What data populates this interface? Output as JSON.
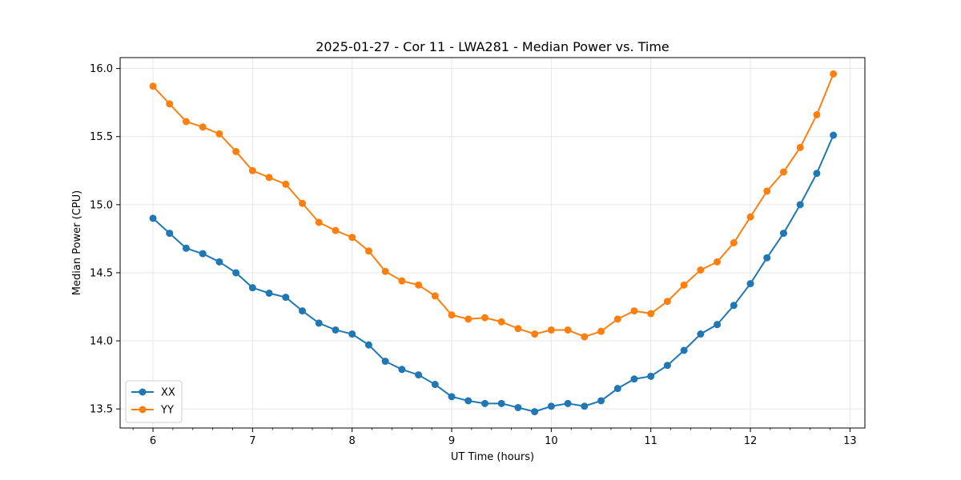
{
  "chart_data": {
    "type": "line",
    "title": "2025-01-27 - Cor 11 - LWA281 - Median Power vs. Time",
    "xlabel": "UT Time (hours)",
    "ylabel": "Median Power (CPU)",
    "xlim": [
      5.67,
      13.15
    ],
    "ylim": [
      13.36,
      16.08
    ],
    "xticks": [
      6,
      7,
      8,
      9,
      10,
      11,
      12,
      13
    ],
    "xtick_labels": [
      "6",
      "7",
      "8",
      "9",
      "10",
      "11",
      "12",
      "13"
    ],
    "yticks": [
      13.5,
      14.0,
      14.5,
      15.0,
      15.5,
      16.0
    ],
    "ytick_labels": [
      "13.5",
      "14.0",
      "14.5",
      "15.0",
      "15.5",
      "16.0"
    ],
    "grid": true,
    "legend_position": "lower-left",
    "x": [
      6.0,
      6.1667,
      6.3333,
      6.5,
      6.6667,
      6.8333,
      7.0,
      7.1667,
      7.3333,
      7.5,
      7.6667,
      7.8333,
      8.0,
      8.1667,
      8.3333,
      8.5,
      8.6667,
      8.8333,
      9.0,
      9.1667,
      9.3333,
      9.5,
      9.6667,
      9.8333,
      10.0,
      10.1667,
      10.3333,
      10.5,
      10.6667,
      10.8333,
      11.0,
      11.1667,
      11.3333,
      11.5,
      11.6667,
      11.8333,
      12.0,
      12.1667,
      12.3333,
      12.5,
      12.6667,
      12.8333
    ],
    "series": [
      {
        "name": "XX",
        "color": "#1f77b4",
        "values": [
          14.9,
          14.79,
          14.68,
          14.64,
          14.58,
          14.5,
          14.39,
          14.35,
          14.32,
          14.22,
          14.13,
          14.08,
          14.05,
          13.97,
          13.85,
          13.79,
          13.75,
          13.68,
          13.59,
          13.56,
          13.54,
          13.54,
          13.51,
          13.48,
          13.52,
          13.54,
          13.52,
          13.56,
          13.65,
          13.72,
          13.74,
          13.82,
          13.93,
          14.05,
          14.12,
          14.26,
          14.42,
          14.61,
          14.79,
          15.0,
          15.23,
          15.51
        ]
      },
      {
        "name": "YY",
        "color": "#ff7f0e",
        "values": [
          15.87,
          15.74,
          15.61,
          15.57,
          15.52,
          15.39,
          15.25,
          15.2,
          15.15,
          15.01,
          14.87,
          14.81,
          14.76,
          14.66,
          14.51,
          14.44,
          14.41,
          14.33,
          14.19,
          14.16,
          14.17,
          14.14,
          14.09,
          14.05,
          14.08,
          14.08,
          14.03,
          14.07,
          14.16,
          14.22,
          14.2,
          14.29,
          14.41,
          14.52,
          14.58,
          14.72,
          14.91,
          15.1,
          15.24,
          15.42,
          15.66,
          15.96
        ]
      }
    ]
  }
}
